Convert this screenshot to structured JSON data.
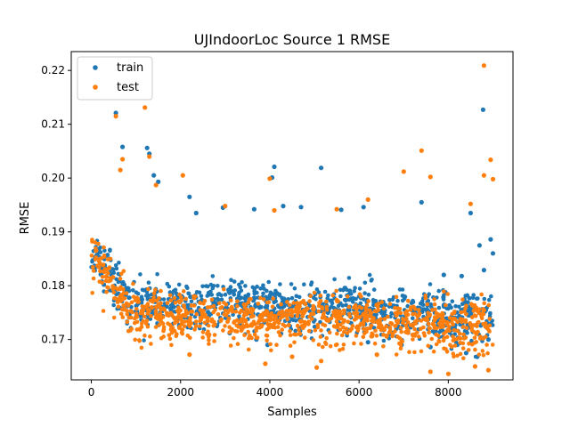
{
  "chart_data": {
    "type": "scatter",
    "title": "UJIndoorLoc Source 1 RMSE",
    "xlabel": "Samples",
    "ylabel": "RMSE",
    "xlim": [
      -450,
      9450
    ],
    "ylim": [
      0.1625,
      0.2235
    ],
    "xticks": [
      0,
      2000,
      4000,
      6000,
      8000
    ],
    "yticks": [
      0.17,
      0.18,
      0.19,
      0.2,
      0.21,
      0.22
    ],
    "ytick_labels": [
      "0.17",
      "0.18",
      "0.19",
      "0.20",
      "0.21",
      "0.22"
    ],
    "grid": false,
    "legend_position": "top-left",
    "series": [
      {
        "name": "train",
        "color": "#1f77b4",
        "points": [
          [
            550,
            0.2121
          ],
          [
            1250,
            0.2056
          ],
          [
            1300,
            0.2045
          ],
          [
            4100,
            0.2021
          ],
          [
            4050,
            0.2001
          ],
          [
            5150,
            0.2019
          ],
          [
            8780,
            0.2127
          ],
          [
            7400,
            0.1955
          ],
          [
            700,
            0.2058
          ],
          [
            1400,
            0.2005
          ],
          [
            1500,
            0.1993
          ],
          [
            2200,
            0.1965
          ],
          [
            2350,
            0.1935
          ],
          [
            2950,
            0.1945
          ],
          [
            3650,
            0.1942
          ],
          [
            4300,
            0.1948
          ],
          [
            4700,
            0.1946
          ],
          [
            5600,
            0.1941
          ],
          [
            6100,
            0.1946
          ],
          [
            8500,
            0.1935
          ],
          [
            8950,
            0.1886
          ],
          [
            8700,
            0.1875
          ],
          [
            9000,
            0.186
          ],
          [
            7900,
            0.182
          ],
          [
            8300,
            0.1818
          ],
          [
            8800,
            0.1829
          ],
          [
            8200,
            0.169
          ],
          [
            8650,
            0.1668
          ],
          [
            8400,
            0.1675
          ],
          [
            7600,
            0.1686
          ],
          [
            8900,
            0.17
          ],
          [
            6200,
            0.1695
          ],
          [
            3950,
            0.169
          ],
          [
            3700,
            0.17
          ],
          [
            3100,
            0.1712
          ]
        ],
        "cloud": {
          "segments": [
            {
              "x_range": [
                0,
                200
              ],
              "center": 0.185,
              "spread": 0.0055
            },
            {
              "x_range": [
                200,
                500
              ],
              "center": 0.183,
              "spread": 0.006
            },
            {
              "x_range": [
                500,
                800
              ],
              "center": 0.179,
              "spread": 0.0058
            },
            {
              "x_range": [
                800,
                1500
              ],
              "center": 0.177,
              "spread": 0.006
            },
            {
              "x_range": [
                1500,
                4000
              ],
              "center": 0.1765,
              "spread": 0.0058
            },
            {
              "x_range": [
                4000,
                6500
              ],
              "center": 0.176,
              "spread": 0.0058
            },
            {
              "x_range": [
                6500,
                8000
              ],
              "center": 0.175,
              "spread": 0.006
            },
            {
              "x_range": [
                8000,
                9000
              ],
              "center": 0.1745,
              "spread": 0.0062
            }
          ]
        }
      },
      {
        "name": "test",
        "color": "#ff7f0e",
        "points": [
          [
            8800,
            0.2209
          ],
          [
            1200,
            0.2131
          ],
          [
            550,
            0.2115
          ],
          [
            1300,
            0.204
          ],
          [
            7400,
            0.2051
          ],
          [
            7000,
            0.2012
          ],
          [
            7600,
            0.2002
          ],
          [
            8950,
            0.2034
          ],
          [
            9000,
            0.1998
          ],
          [
            4000,
            0.1999
          ],
          [
            1450,
            0.1987
          ],
          [
            2050,
            0.2005
          ],
          [
            8800,
            0.2005
          ],
          [
            6200,
            0.196
          ],
          [
            8500,
            0.1952
          ],
          [
            5500,
            0.1942
          ],
          [
            3000,
            0.1948
          ],
          [
            4100,
            0.194
          ],
          [
            650,
            0.2015
          ],
          [
            700,
            0.2035
          ],
          [
            2200,
            0.1672
          ],
          [
            3900,
            0.1655
          ],
          [
            5050,
            0.1648
          ],
          [
            5150,
            0.166
          ],
          [
            8000,
            0.1636
          ],
          [
            7600,
            0.164
          ],
          [
            8600,
            0.165
          ],
          [
            8900,
            0.1643
          ],
          [
            6400,
            0.1672
          ],
          [
            4500,
            0.1668
          ]
        ],
        "cloud": {
          "segments": [
            {
              "x_range": [
                0,
                200
              ],
              "center": 0.185,
              "spread": 0.006
            },
            {
              "x_range": [
                200,
                500
              ],
              "center": 0.182,
              "spread": 0.0065
            },
            {
              "x_range": [
                500,
                800
              ],
              "center": 0.177,
              "spread": 0.0062
            },
            {
              "x_range": [
                800,
                1500
              ],
              "center": 0.1745,
              "spread": 0.006
            },
            {
              "x_range": [
                1500,
                4000
              ],
              "center": 0.174,
              "spread": 0.0058
            },
            {
              "x_range": [
                4000,
                6500
              ],
              "center": 0.1738,
              "spread": 0.0058
            },
            {
              "x_range": [
                6500,
                8000
              ],
              "center": 0.1728,
              "spread": 0.006
            },
            {
              "x_range": [
                8000,
                9000
              ],
              "center": 0.1722,
              "spread": 0.0062
            }
          ]
        }
      }
    ]
  }
}
